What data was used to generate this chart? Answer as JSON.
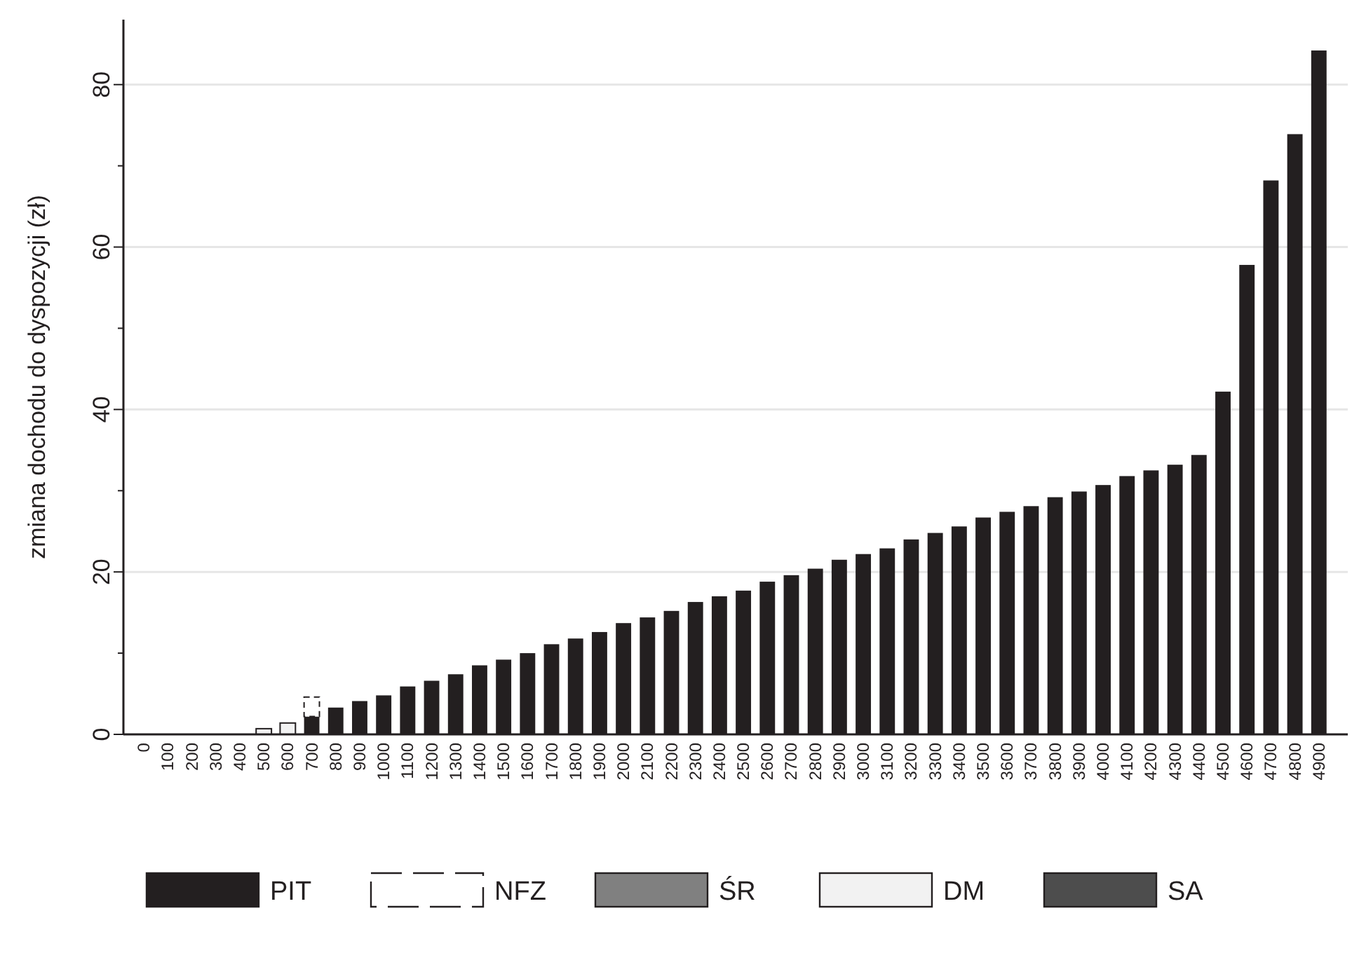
{
  "chart_data": {
    "type": "bar",
    "ylabel": "zmiana dochodu do dyspozycji (zł)",
    "stacked": true,
    "legend": "bottom",
    "grid": "y",
    "categories": [
      "0",
      "100",
      "200",
      "300",
      "400",
      "500",
      "600",
      "700",
      "800",
      "900",
      "1000",
      "1100",
      "1200",
      "1300",
      "1400",
      "1500",
      "1600",
      "1700",
      "1800",
      "1900",
      "2000",
      "2100",
      "2200",
      "2300",
      "2400",
      "2500",
      "2600",
      "2700",
      "2800",
      "2900",
      "3000",
      "3100",
      "3200",
      "3300",
      "3400",
      "3500",
      "3600",
      "3700",
      "3800",
      "3900",
      "4000",
      "4100",
      "4200",
      "4300",
      "4400",
      "4500",
      "4600",
      "4700",
      "4800",
      "4900"
    ],
    "ylim": [
      0,
      88
    ],
    "yticks": [
      0,
      {
        "value": 10,
        "label": null
      },
      20,
      {
        "value": 30,
        "label": null
      },
      40,
      {
        "value": 50,
        "label": null
      },
      60,
      {
        "value": 70,
        "label": null
      },
      80
    ],
    "series": [
      {
        "name": "PIT",
        "color": "#231f20",
        "values": [
          0,
          0,
          0,
          0,
          0,
          0,
          0,
          2.2,
          3.3,
          4.1,
          4.8,
          5.9,
          6.6,
          7.4,
          8.5,
          9.2,
          10.0,
          11.1,
          11.8,
          12.6,
          13.7,
          14.4,
          15.2,
          16.3,
          17.0,
          17.7,
          18.8,
          19.6,
          20.4,
          21.5,
          22.2,
          22.9,
          24.0,
          24.8,
          25.6,
          26.7,
          27.4,
          28.1,
          29.2,
          29.9,
          30.7,
          31.8,
          32.5,
          33.2,
          34.4,
          42.2,
          57.8,
          68.2,
          73.9,
          84.2
        ]
      },
      {
        "name": "NFZ",
        "color": "#ffffff",
        "line_style": "dashed",
        "values": [
          0,
          0,
          0,
          0,
          0,
          0,
          0,
          2.4,
          0,
          0,
          0,
          0,
          0,
          0,
          0,
          0,
          0,
          0,
          0,
          0,
          0,
          0,
          0,
          0,
          0,
          0,
          0,
          0,
          0,
          0,
          0,
          0,
          0,
          0,
          0,
          0,
          0,
          0,
          0,
          0,
          0,
          0,
          0,
          0,
          0,
          0,
          0,
          0,
          0,
          0
        ]
      },
      {
        "name": "ŚR",
        "color": "#808080",
        "values": [
          0,
          0,
          0,
          0,
          0,
          0,
          0,
          0,
          0,
          0,
          0,
          0,
          0,
          0,
          0,
          0,
          0,
          0,
          0,
          0,
          0,
          0,
          0,
          0,
          0,
          0,
          0,
          0,
          0,
          0,
          0,
          0,
          0,
          0,
          0,
          0,
          0,
          0,
          0,
          0,
          0,
          0,
          0,
          0,
          0,
          0,
          0,
          0,
          0,
          0
        ]
      },
      {
        "name": "DM",
        "color": "#f2f2f2",
        "values": [
          0,
          0,
          0,
          0,
          0,
          0.7,
          1.4,
          0,
          0,
          0,
          0,
          0,
          0,
          0,
          0,
          0,
          0,
          0,
          0,
          0,
          0,
          0,
          0,
          0,
          0,
          0,
          0,
          0,
          0,
          0,
          0,
          0,
          0,
          0,
          0,
          0,
          0,
          0,
          0,
          0,
          0,
          0,
          0,
          0,
          0,
          0,
          0,
          0,
          0,
          0
        ]
      },
      {
        "name": "SA",
        "color": "#4d4d4d",
        "values": [
          0,
          0,
          0,
          0,
          0,
          0,
          0,
          0,
          0,
          0,
          0,
          0,
          0,
          0,
          0,
          0,
          0,
          0,
          0,
          0,
          0,
          0,
          0,
          0,
          0,
          0,
          0,
          0,
          0,
          0,
          0,
          0,
          0,
          0,
          0,
          0,
          0,
          0,
          0,
          0,
          0,
          0,
          0,
          0,
          0,
          0,
          0,
          0,
          0,
          0
        ]
      }
    ]
  }
}
